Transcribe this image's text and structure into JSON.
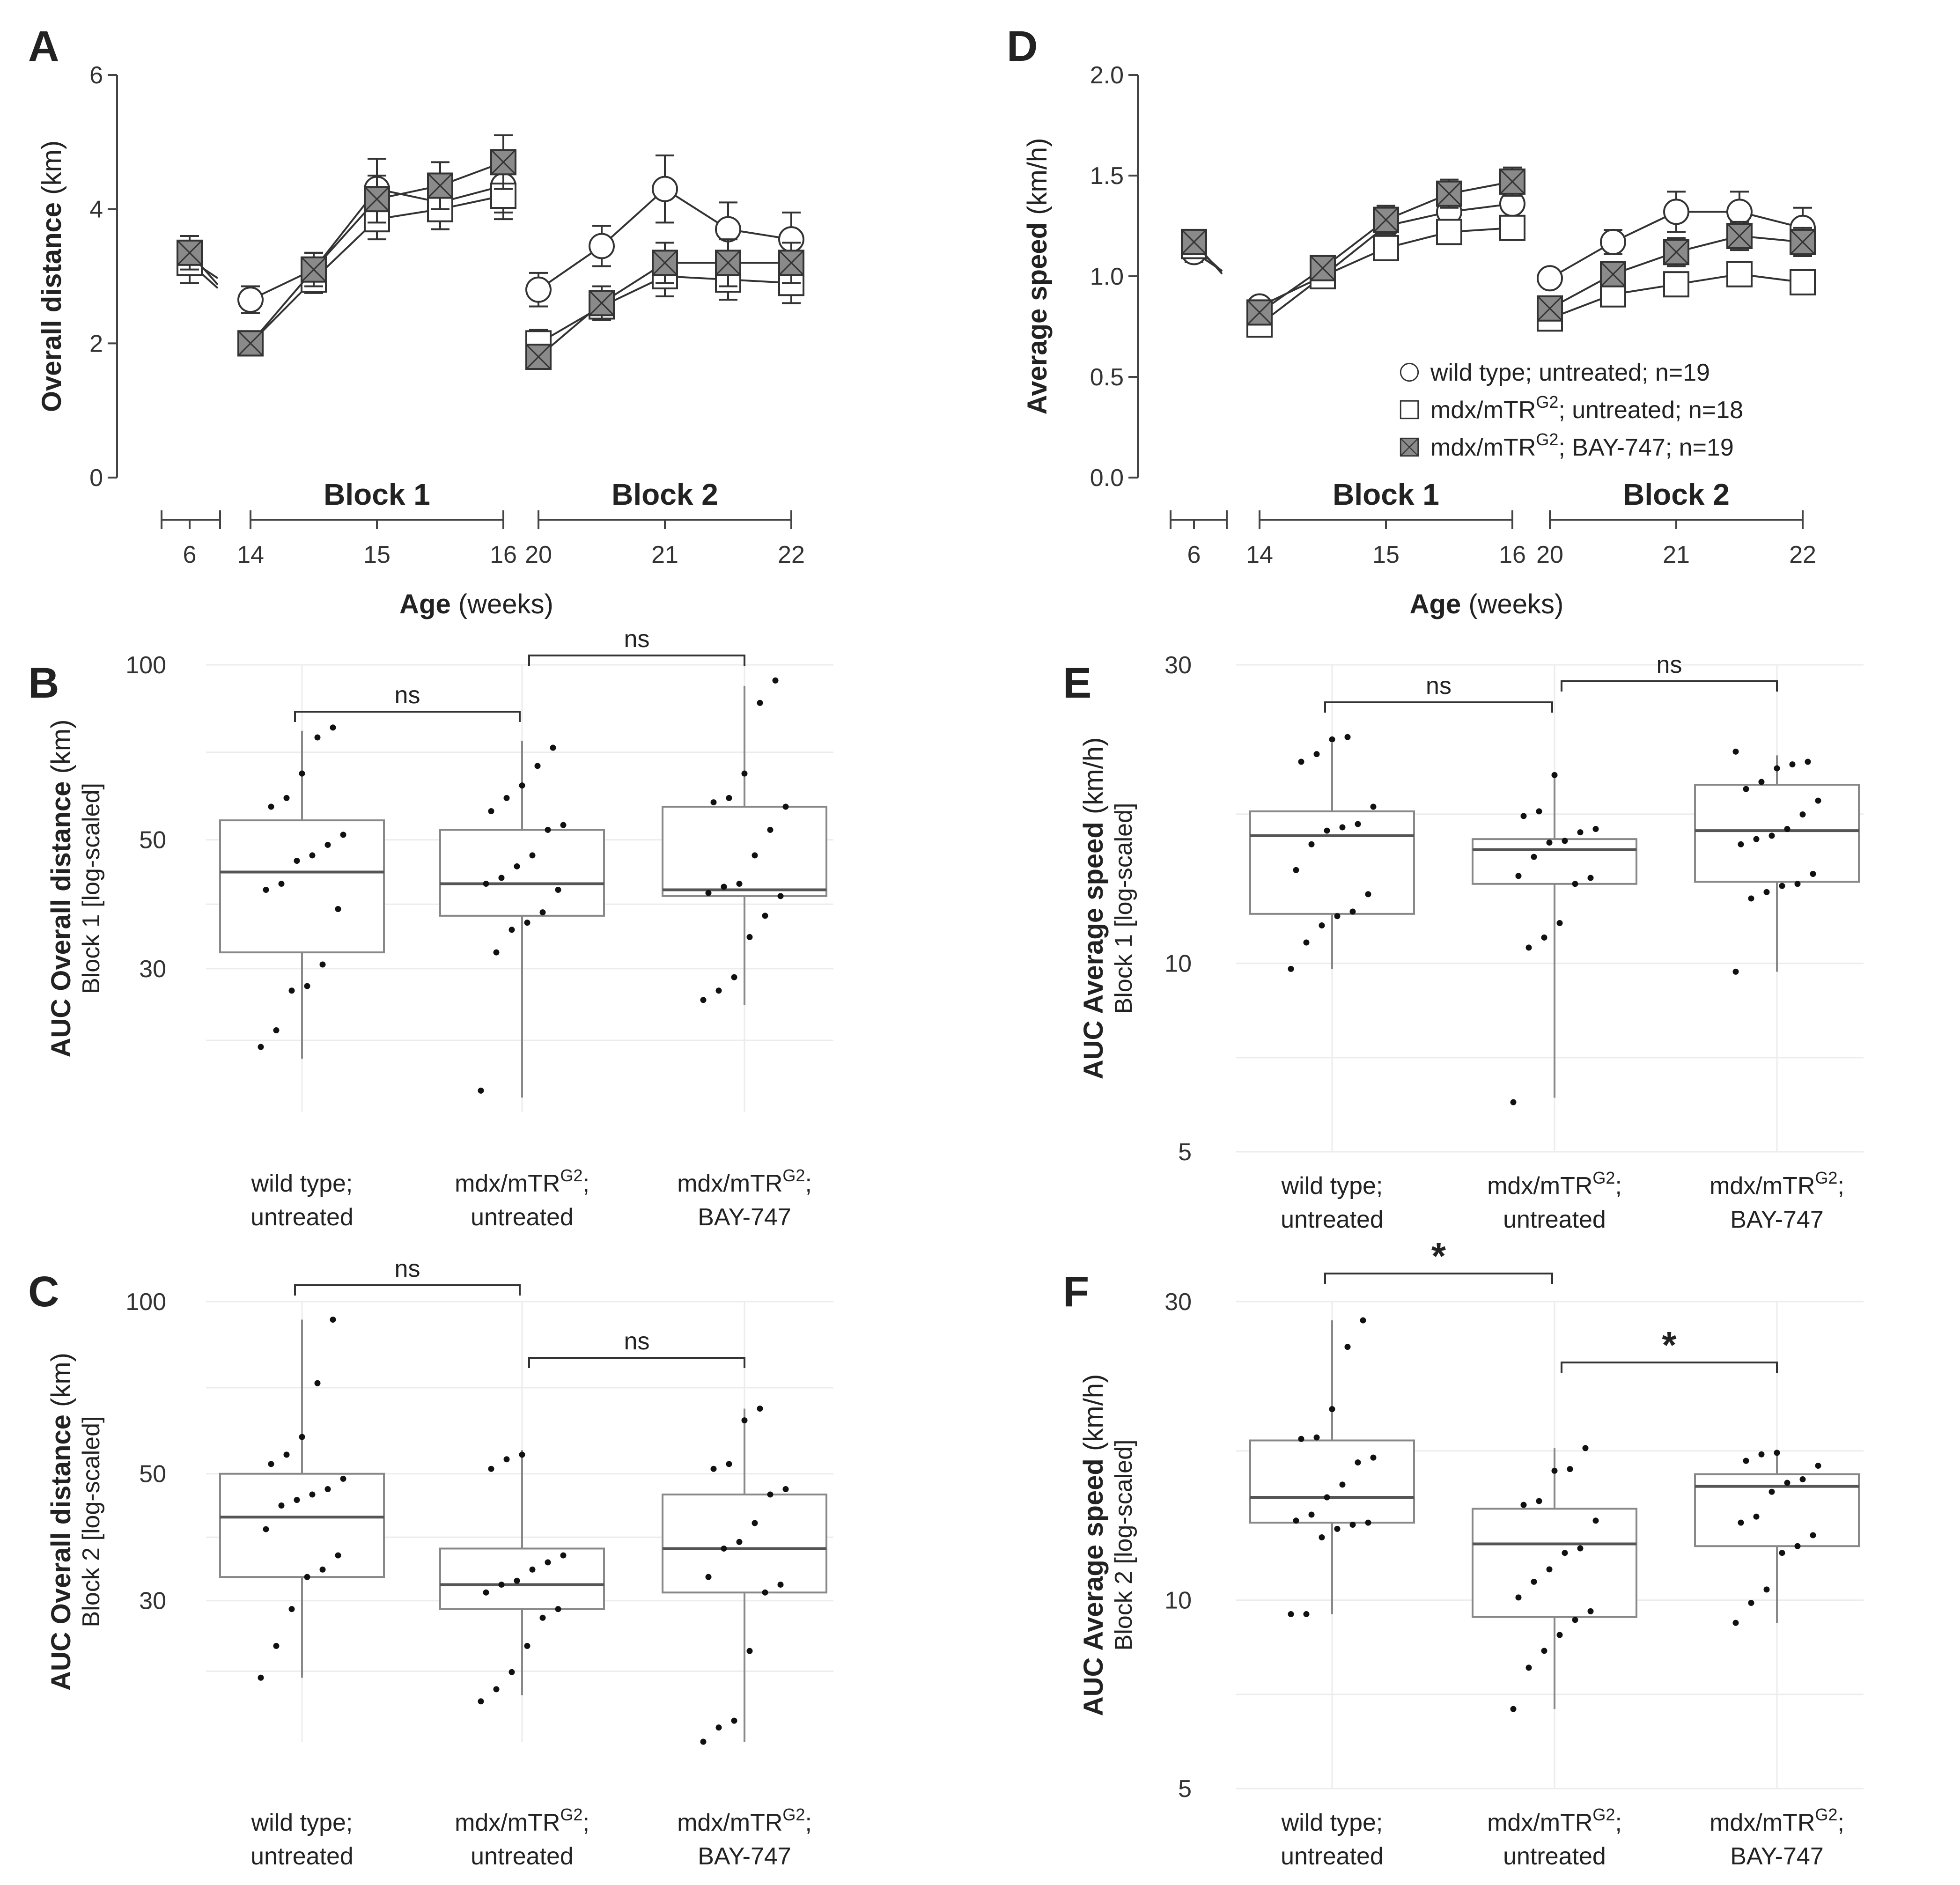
{
  "chart_data": [
    {
      "panel": "A",
      "type": "line",
      "ylabel_bold": "Overall distance",
      "ylabel_unit": "(km)",
      "xlabel_bold": "Age",
      "xlabel_unit": "(weeks)",
      "ylim": [
        0,
        6
      ],
      "yticks": [
        0,
        2,
        4,
        6
      ],
      "blocks": [
        {
          "label": "",
          "ticks": [
            {
              "pos": 6,
              "label": "6"
            }
          ]
        },
        {
          "label": "Block 1",
          "ticks": [
            {
              "pos": 14,
              "label": "14"
            },
            {
              "pos": 15,
              "label": "15"
            },
            {
              "pos": 16,
              "label": "16"
            }
          ]
        },
        {
          "label": "Block 2",
          "ticks": [
            {
              "pos": 20,
              "label": "20"
            },
            {
              "pos": 21,
              "label": "21"
            },
            {
              "pos": 22,
              "label": "22"
            }
          ]
        }
      ],
      "series": [
        {
          "name": "wild type; untreated; n=19",
          "marker": "circle",
          "segments": [
            {
              "x": [
                6
              ],
              "y": [
                3.25
              ],
              "err": [
                0.2
              ]
            },
            {
              "x": [
                14,
                14.5,
                15,
                15.5,
                16
              ],
              "y": [
                2.65,
                3.1,
                4.3,
                4.1,
                4.35
              ],
              "err": [
                0.2,
                0.25,
                0.45,
                0.4,
                0.4
              ]
            },
            {
              "x": [
                20,
                20.5,
                21,
                21.5,
                22
              ],
              "y": [
                2.8,
                3.45,
                4.3,
                3.7,
                3.55
              ],
              "err": [
                0.25,
                0.3,
                0.5,
                0.4,
                0.4
              ]
            }
          ]
        },
        {
          "name": "mdx/mTR; untreated; n=18",
          "marker": "square",
          "segments": [
            {
              "x": [
                6
              ],
              "y": [
                3.2
              ],
              "err": [
                0.3
              ]
            },
            {
              "x": [
                14,
                14.5,
                15,
                15.5,
                16
              ],
              "y": [
                2.0,
                2.95,
                3.85,
                4.0,
                4.2
              ],
              "err": [
                0.15,
                0.2,
                0.3,
                0.3,
                0.35
              ]
            },
            {
              "x": [
                20,
                20.5,
                21,
                21.5,
                22
              ],
              "y": [
                2.0,
                2.55,
                3.0,
                2.95,
                2.9
              ],
              "err": [
                0.2,
                0.2,
                0.3,
                0.3,
                0.3
              ]
            }
          ]
        },
        {
          "name": "mdx/mTR; BAY-747; n=19",
          "marker": "square-x",
          "segments": [
            {
              "x": [
                6
              ],
              "y": [
                3.35
              ],
              "err": [
                0.25
              ]
            },
            {
              "x": [
                14,
                14.5,
                15,
                15.5,
                16
              ],
              "y": [
                2.0,
                3.1,
                4.15,
                4.35,
                4.7
              ],
              "err": [
                0.15,
                0.25,
                0.35,
                0.35,
                0.4
              ]
            },
            {
              "x": [
                20,
                20.5,
                21,
                21.5,
                22
              ],
              "y": [
                1.8,
                2.6,
                3.2,
                3.2,
                3.2
              ],
              "err": [
                0.15,
                0.25,
                0.3,
                0.35,
                0.3
              ]
            }
          ]
        }
      ]
    },
    {
      "panel": "D",
      "type": "line",
      "ylabel_bold": "Average speed",
      "ylabel_unit": "(km/h)",
      "xlabel_bold": "Age",
      "xlabel_unit": "(weeks)",
      "ylim": [
        0,
        2
      ],
      "yticks": [
        0.0,
        0.5,
        1.0,
        1.5,
        2.0
      ],
      "yticklabels": [
        "0.0",
        "0.5",
        "1.0",
        "1.5",
        "2.0"
      ],
      "blocks": [
        {
          "label": "",
          "ticks": [
            {
              "pos": 6,
              "label": "6"
            }
          ]
        },
        {
          "label": "Block 1",
          "ticks": [
            {
              "pos": 14,
              "label": "14"
            },
            {
              "pos": 15,
              "label": "15"
            },
            {
              "pos": 16,
              "label": "16"
            }
          ]
        },
        {
          "label": "Block 2",
          "ticks": [
            {
              "pos": 20,
              "label": "20"
            },
            {
              "pos": 21,
              "label": "21"
            },
            {
              "pos": 22,
              "label": "22"
            }
          ]
        }
      ],
      "legend": [
        {
          "marker": "circle",
          "text": "wild type; untreated; n=19"
        },
        {
          "marker": "square",
          "text_pre": "mdx/mTR",
          "sup": "G2",
          "text_post": "; untreated; n=18"
        },
        {
          "marker": "square-x",
          "text_pre": "mdx/mTR",
          "sup": "G2",
          "text_post": "; BAY-747; n=19"
        }
      ],
      "series": [
        {
          "name": "wild type; untreated; n=19",
          "marker": "circle",
          "segments": [
            {
              "x": [
                6
              ],
              "y": [
                1.12
              ],
              "err": [
                0.05
              ]
            },
            {
              "x": [
                14,
                14.5,
                15,
                15.5,
                16
              ],
              "y": [
                0.85,
                1.0,
                1.25,
                1.32,
                1.36
              ],
              "err": [
                0.03,
                0.05,
                0.07,
                0.07,
                0.07
              ]
            },
            {
              "x": [
                20,
                20.5,
                21,
                21.5,
                22
              ],
              "y": [
                0.99,
                1.17,
                1.32,
                1.32,
                1.24
              ],
              "err": [
                0.03,
                0.06,
                0.1,
                0.1,
                0.1
              ]
            }
          ]
        },
        {
          "name": "mdx/mTR; untreated; n=18",
          "marker": "square",
          "segments": [
            {
              "x": [
                6
              ],
              "y": [
                1.15
              ],
              "err": [
                0.05
              ]
            },
            {
              "x": [
                14,
                14.5,
                15,
                15.5,
                16
              ],
              "y": [
                0.76,
                1.0,
                1.14,
                1.22,
                1.24
              ],
              "err": [
                0.03,
                0.04,
                0.05,
                0.05,
                0.06
              ]
            },
            {
              "x": [
                20,
                20.5,
                21,
                21.5,
                22
              ],
              "y": [
                0.79,
                0.91,
                0.96,
                1.01,
                0.97
              ],
              "err": [
                0.03,
                0.04,
                0.05,
                0.06,
                0.06
              ]
            }
          ]
        },
        {
          "name": "mdx/mTR; BAY-747; n=19",
          "marker": "square-x",
          "segments": [
            {
              "x": [
                6
              ],
              "y": [
                1.17
              ],
              "err": [
                0.05
              ]
            },
            {
              "x": [
                14,
                14.5,
                15,
                15.5,
                16
              ],
              "y": [
                0.82,
                1.04,
                1.28,
                1.41,
                1.47
              ],
              "err": [
                0.03,
                0.05,
                0.07,
                0.07,
                0.07
              ]
            },
            {
              "x": [
                20,
                20.5,
                21,
                21.5,
                22
              ],
              "y": [
                0.84,
                1.01,
                1.12,
                1.2,
                1.17
              ],
              "err": [
                0.03,
                0.05,
                0.07,
                0.07,
                0.07
              ]
            }
          ]
        }
      ]
    },
    {
      "panel": "B",
      "type": "box",
      "ylabel_bold": "AUC Overall distance",
      "ylabel_unit": "(km)",
      "ylabel_sub": "Block 1 [log-scaled]",
      "log_scale": true,
      "ylim": [
        17,
        100
      ],
      "yticks": [
        30,
        50,
        100
      ],
      "categories": [
        {
          "line1_pre": "wild type;",
          "line2": "untreated"
        },
        {
          "line1_pre": "mdx/mTR",
          "sup": "G2",
          "line1_post": ";",
          "line2": "untreated"
        },
        {
          "line1_pre": "mdx/mTR",
          "sup": "G2",
          "line1_post": ";",
          "line2": "BAY-747"
        }
      ],
      "boxes": [
        {
          "whisker_low": 21,
          "q1": 32,
          "median": 44,
          "q3": 54,
          "whisker_high": 77
        },
        {
          "whisker_low": 18,
          "q1": 37,
          "median": 42,
          "q3": 52,
          "whisker_high": 74
        },
        {
          "whisker_low": 26,
          "q1": 40,
          "median": 41,
          "q3": 57,
          "whisker_high": 92
        }
      ],
      "points": [
        [
          22,
          23.5,
          27.5,
          28,
          30.5,
          38,
          41,
          42,
          46,
          47,
          49,
          51,
          57,
          59,
          65,
          75,
          78
        ],
        [
          18.5,
          32,
          35,
          36,
          37.5,
          41,
          42,
          43,
          45,
          47,
          52,
          53,
          56,
          59,
          62,
          67,
          72
        ],
        [
          26.5,
          27.5,
          29,
          34,
          37,
          40,
          40.5,
          41.5,
          42,
          47,
          52,
          57,
          58,
          59,
          65,
          86,
          94
        ]
      ],
      "comparisons": [
        {
          "from": 0,
          "to": 1,
          "label": "ns"
        },
        {
          "from": 1,
          "to": 2,
          "label": "ns"
        }
      ]
    },
    {
      "panel": "C",
      "type": "box",
      "ylabel_bold": "AUC Overall distance",
      "ylabel_unit": "(km)",
      "ylabel_sub": "Block 2 [log-scaled]",
      "log_scale": true,
      "ylim": [
        17,
        100
      ],
      "yticks": [
        30,
        50,
        100
      ],
      "categories": [
        {
          "line1_pre": "wild type;",
          "line2": "untreated"
        },
        {
          "line1_pre": "mdx/mTR",
          "sup": "G2",
          "line1_post": ";",
          "line2": "untreated"
        },
        {
          "line1_pre": "mdx/mTR",
          "sup": "G2",
          "line1_post": ";",
          "line2": "BAY-747"
        }
      ],
      "boxes": [
        {
          "whisker_low": 22,
          "q1": 33,
          "median": 42,
          "q3": 50,
          "whisker_high": 93
        },
        {
          "whisker_low": 20.5,
          "q1": 29,
          "median": 32,
          "q3": 37,
          "whisker_high": 55
        },
        {
          "whisker_low": 17,
          "q1": 31,
          "median": 37,
          "q3": 46,
          "whisker_high": 65
        }
      ],
      "points": [
        [
          22,
          25,
          29,
          33,
          34,
          36,
          40,
          44,
          45,
          46,
          47,
          49,
          52,
          54,
          58,
          72,
          93
        ],
        [
          20,
          21,
          22.5,
          25,
          28,
          29,
          31,
          32,
          32.5,
          34,
          35,
          36,
          51,
          53,
          54
        ],
        [
          17,
          18,
          18.5,
          24.5,
          31,
          32,
          33,
          37,
          38,
          41,
          46,
          47,
          51,
          52,
          62,
          65
        ]
      ],
      "comparisons": [
        {
          "from": 0,
          "to": 1,
          "label": "ns"
        },
        {
          "from": 1,
          "to": 2,
          "label": "ns"
        }
      ]
    },
    {
      "panel": "E",
      "type": "box",
      "ylabel_bold": "AUC Average speed",
      "ylabel_unit": "(km/h)",
      "ylabel_sub": "Block 1 [log-scaled]",
      "log_scale": true,
      "ylim": [
        5,
        30
      ],
      "yticks": [
        5,
        10,
        30
      ],
      "categories": [
        {
          "line1_pre": "wild type;",
          "line2": "untreated"
        },
        {
          "line1_pre": "mdx/mTR",
          "sup": "G2",
          "line1_post": ";",
          "line2": "untreated"
        },
        {
          "line1_pre": "mdx/mTR",
          "sup": "G2",
          "line1_post": ";",
          "line2": "BAY-747"
        }
      ],
      "boxes": [
        {
          "whisker_low": 9.8,
          "q1": 12,
          "median": 16,
          "q3": 17.5,
          "whisker_high": 22.5
        },
        {
          "whisker_low": 6.1,
          "q1": 13.4,
          "median": 15.2,
          "q3": 15.8,
          "whisker_high": 20
        },
        {
          "whisker_low": 9.7,
          "q1": 13.5,
          "median": 16.3,
          "q3": 19.3,
          "whisker_high": 21.5
        }
      ],
      "points": [
        [
          9.8,
          10.8,
          11.5,
          11.9,
          12.1,
          12.9,
          14.1,
          15.5,
          16.3,
          16.5,
          16.7,
          17.8,
          21,
          21.6,
          22.8,
          23
        ],
        [
          6,
          10.6,
          11,
          11.6,
          13.4,
          13.7,
          13.8,
          14.8,
          15.6,
          15.7,
          16.2,
          16.4,
          17.2,
          17.5,
          20
        ],
        [
          9.7,
          12.7,
          13,
          13.3,
          13.4,
          13.9,
          15.5,
          15.8,
          16,
          16.4,
          17.3,
          18.2,
          19,
          19.5,
          20.5,
          20.8,
          21,
          21.8
        ]
      ],
      "comparisons": [
        {
          "from": 0,
          "to": 1,
          "label": "ns"
        },
        {
          "from": 1,
          "to": 2,
          "label": "ns"
        }
      ]
    },
    {
      "panel": "F",
      "type": "box",
      "ylabel_bold": "AUC Average speed",
      "ylabel_unit": "(km/h)",
      "ylabel_sub": "Block 2 [log-scaled]",
      "log_scale": true,
      "ylim": [
        5,
        30
      ],
      "yticks": [
        5,
        10,
        30
      ],
      "categories": [
        {
          "line1_pre": "wild type;",
          "line2": "untreated"
        },
        {
          "line1_pre": "mdx/mTR",
          "sup": "G2",
          "line1_post": ";",
          "line2": "untreated"
        },
        {
          "line1_pre": "mdx/mTR",
          "sup": "G2",
          "line1_post": ";",
          "line2": "BAY-747"
        }
      ],
      "boxes": [
        {
          "whisker_low": 9.5,
          "q1": 13.3,
          "median": 14.6,
          "q3": 18,
          "whisker_high": 28
        },
        {
          "whisker_low": 6.7,
          "q1": 9.4,
          "median": 12.3,
          "q3": 14,
          "whisker_high": 17.5
        },
        {
          "whisker_low": 9.2,
          "q1": 12.2,
          "median": 15.2,
          "q3": 15.9,
          "whisker_high": 17.2
        }
      ],
      "points": [
        [
          9.5,
          9.5,
          12.6,
          13,
          13.2,
          13.3,
          13.4,
          13.7,
          14.6,
          15.3,
          16.6,
          16.9,
          18.1,
          18.2,
          20.2,
          25.4,
          28
        ],
        [
          6.7,
          7.8,
          8.3,
          8.8,
          9.3,
          9.6,
          10.1,
          10.7,
          11.2,
          11.9,
          12.1,
          13.4,
          14.2,
          14.4,
          16.1,
          16.2,
          17.5
        ],
        [
          9.2,
          9.9,
          10.4,
          11.9,
          12.2,
          12.7,
          13.3,
          13.6,
          14.9,
          15.4,
          15.6,
          16.4,
          16.7,
          17.1,
          17.2
        ]
      ],
      "comparisons": [
        {
          "from": 0,
          "to": 1,
          "label": "*"
        },
        {
          "from": 1,
          "to": 2,
          "label": "*"
        }
      ]
    }
  ]
}
